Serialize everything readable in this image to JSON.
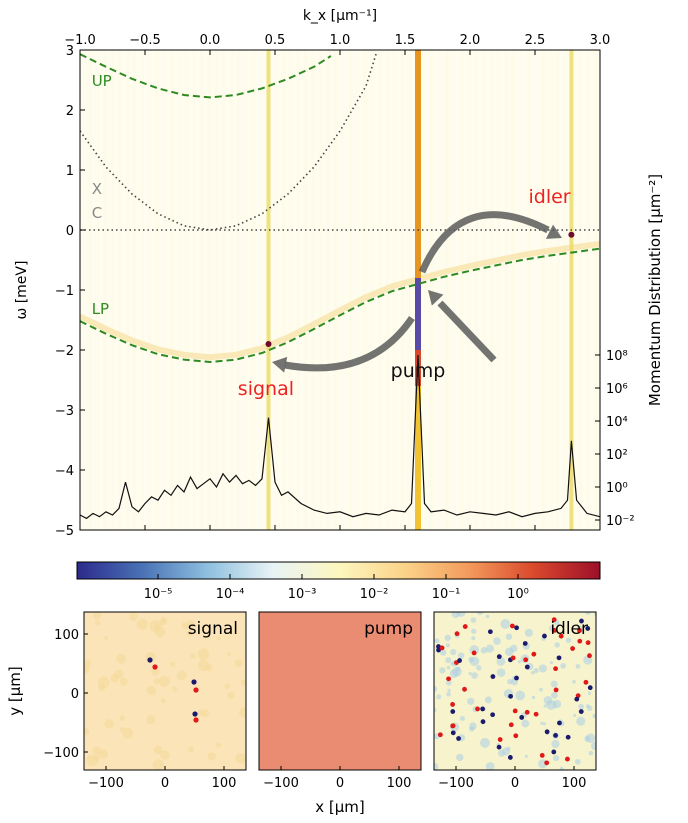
{
  "chart_data": {
    "type": "heatmap",
    "main": {
      "xlabel": "k_x [μm⁻¹]",
      "ylabel": "ω [meV]",
      "right_label": "Momentum Distribution [μm⁻²]",
      "xlim": [
        -1.0,
        3.0
      ],
      "ylim": [
        -5,
        3
      ],
      "xticks": [
        "−1.0",
        "−0.5",
        "0.0",
        "0.5",
        "1.0",
        "1.5",
        "2.0",
        "2.5",
        "3.0"
      ],
      "yticks": [
        "3",
        "2",
        "1",
        "0",
        "−1",
        "−2",
        "−3",
        "−4",
        "−5"
      ],
      "right_ticks": [
        "10⁸",
        "10⁶",
        "10⁴",
        "10²",
        "10⁰",
        "10⁻²"
      ],
      "curves": [
        {
          "label": "UP",
          "style": "dashed",
          "color": "#2e8b22",
          "x": [
            -1.0,
            -0.8,
            -0.6,
            -0.4,
            -0.2,
            0.0,
            0.2,
            0.4,
            0.6,
            0.8,
            0.93
          ],
          "y": [
            2.93,
            2.72,
            2.52,
            2.36,
            2.25,
            2.21,
            2.25,
            2.36,
            2.52,
            2.72,
            2.9
          ]
        },
        {
          "label": "X",
          "style": "dotted",
          "color": "#444444",
          "x": [
            -1.0,
            -0.8,
            -0.6,
            -0.4,
            -0.2,
            0.0,
            0.2,
            0.4,
            0.6,
            0.8,
            1.0,
            1.2,
            1.28
          ],
          "y": [
            1.65,
            1.05,
            0.6,
            0.27,
            0.07,
            0.0,
            0.07,
            0.27,
            0.6,
            1.05,
            1.65,
            2.4,
            2.95
          ]
        },
        {
          "label": "C",
          "style": "dotted",
          "color": "#444444",
          "x": [
            -1.0,
            3.0
          ],
          "y": [
            0.0,
            0.0
          ]
        },
        {
          "label": "LP",
          "style": "dashed",
          "color": "#2e8b22",
          "x": [
            -1.0,
            -0.8,
            -0.6,
            -0.4,
            -0.2,
            0.0,
            0.2,
            0.4,
            0.6,
            0.8,
            1.0,
            1.2,
            1.4,
            1.6,
            1.8,
            2.0,
            2.2,
            2.4,
            2.6,
            2.8,
            3.0
          ],
          "y": [
            -1.52,
            -1.73,
            -1.92,
            -2.07,
            -2.16,
            -2.2,
            -2.16,
            -2.05,
            -1.87,
            -1.65,
            -1.42,
            -1.2,
            -1.02,
            -0.9,
            -0.78,
            -0.68,
            -0.59,
            -0.5,
            -0.43,
            -0.37,
            -0.31
          ]
        }
      ],
      "vertical_lines": [
        {
          "x": 0.45,
          "color": "#e8d85a"
        },
        {
          "x": 1.6,
          "color": "#e07a1e"
        },
        {
          "x": 2.78,
          "color": "#e8d85a"
        }
      ],
      "annotations": [
        {
          "text": "UP",
          "x": -0.91,
          "y": 2.4,
          "color": "#2e8b22"
        },
        {
          "text": "X",
          "x": -0.91,
          "y": 0.6,
          "color": "#888888"
        },
        {
          "text": "C",
          "x": -0.91,
          "y": 0.2,
          "color": "#888888"
        },
        {
          "text": "LP",
          "x": -0.91,
          "y": -1.4,
          "color": "#2e8b22"
        },
        {
          "text": "idler",
          "x": 2.45,
          "y": 0.45,
          "color": "#ee2222"
        },
        {
          "text": "pump",
          "x": 1.6,
          "y": -2.45,
          "color": "#111111"
        },
        {
          "text": "signal",
          "x": 0.43,
          "y": -2.75,
          "color": "#ee2222"
        }
      ],
      "momentum_distribution": {
        "x": [
          -1.0,
          -0.95,
          -0.9,
          -0.85,
          -0.8,
          -0.75,
          -0.7,
          -0.65,
          -0.6,
          -0.55,
          -0.5,
          -0.45,
          -0.4,
          -0.35,
          -0.3,
          -0.25,
          -0.2,
          -0.15,
          -0.1,
          -0.05,
          0.0,
          0.05,
          0.1,
          0.15,
          0.2,
          0.25,
          0.3,
          0.35,
          0.4,
          0.45,
          0.5,
          0.55,
          0.6,
          0.7,
          0.8,
          0.9,
          1.0,
          1.1,
          1.2,
          1.3,
          1.4,
          1.5,
          1.55,
          1.6,
          1.65,
          1.7,
          1.8,
          1.9,
          2.0,
          2.1,
          2.2,
          2.3,
          2.4,
          2.5,
          2.6,
          2.7,
          2.75,
          2.78,
          2.82,
          2.9,
          3.0
        ],
        "log10_y": [
          -1.7,
          -1.9,
          -1.6,
          -1.8,
          -1.5,
          -1.7,
          -1.3,
          0.3,
          -1.2,
          -1.5,
          -1.0,
          -0.6,
          -0.8,
          -0.2,
          -0.5,
          0.1,
          -0.3,
          0.6,
          -0.1,
          0.2,
          0.5,
          0.0,
          0.8,
          0.3,
          0.7,
          0.2,
          0.4,
          0.1,
          0.5,
          4.2,
          0.3,
          -0.5,
          -0.3,
          -1.0,
          -1.4,
          -1.6,
          -1.5,
          -1.8,
          -1.6,
          -1.7,
          -1.4,
          -1.5,
          -1.0,
          8.0,
          -1.0,
          -1.5,
          -1.4,
          -1.7,
          -1.5,
          -1.6,
          -1.7,
          -1.5,
          -1.8,
          -1.6,
          -1.5,
          -1.3,
          -0.8,
          2.8,
          -0.8,
          -1.6,
          -1.8
        ]
      }
    },
    "colorbar": {
      "ticks": [
        "10⁻⁵",
        "10⁻⁴",
        "10⁻³",
        "10⁻²",
        "10⁻¹",
        "10⁰"
      ],
      "colors": [
        "#2c2a8c",
        "#4a72b6",
        "#8ec0df",
        "#e8f3f5",
        "#fdf7bf",
        "#fbd48a",
        "#f39a5c",
        "#d9482c",
        "#9d0f2a"
      ]
    },
    "panels": [
      {
        "title": "signal",
        "background": "#fbe5b8"
      },
      {
        "title": "pump",
        "background": "#ea8c72"
      },
      {
        "title": "idler",
        "background": "#f7f3cc"
      }
    ],
    "panel_axes": {
      "xlabel": "x [μm]",
      "ylabel": "y [μm]",
      "xticks": [
        "−100",
        "0",
        "100"
      ],
      "yticks": [
        "100",
        "0",
        "−100"
      ]
    }
  }
}
